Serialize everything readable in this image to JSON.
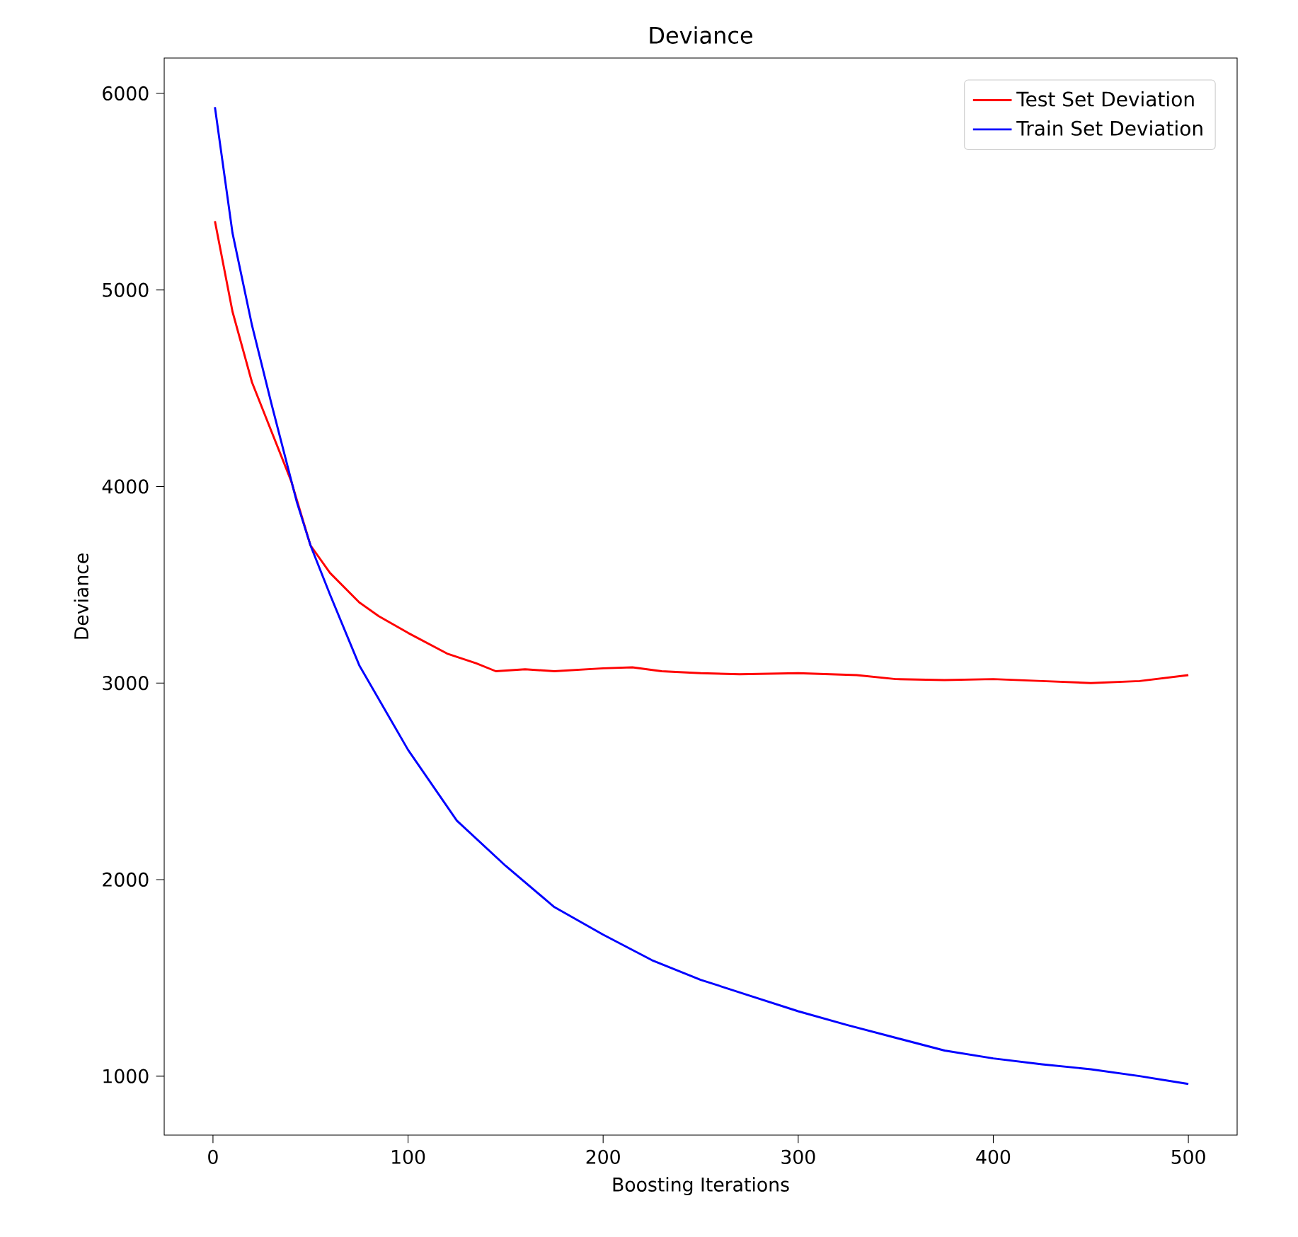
{
  "chart_data": {
    "type": "line",
    "title": "Deviance",
    "xlabel": "Boosting Iterations",
    "ylabel": "Deviance",
    "xlim": [
      -25,
      525
    ],
    "ylim": [
      700,
      6180
    ],
    "xticks": [
      0,
      100,
      200,
      300,
      400,
      500
    ],
    "yticks": [
      1000,
      2000,
      3000,
      4000,
      5000,
      6000
    ],
    "legend": "top right",
    "grid": false,
    "marker": "none",
    "line_style": "solid",
    "series": [
      {
        "name": "Test Set Deviation",
        "color": "#ff0000",
        "x": [
          1,
          10,
          20,
          30,
          40,
          50,
          60,
          75,
          85,
          100,
          120,
          135,
          145,
          160,
          175,
          200,
          215,
          230,
          250,
          270,
          300,
          330,
          350,
          375,
          400,
          425,
          450,
          475,
          500
        ],
        "values": [
          5350,
          4890,
          4530,
          4280,
          4030,
          3700,
          3560,
          3410,
          3340,
          3255,
          3150,
          3100,
          3060,
          3070,
          3060,
          3075,
          3080,
          3060,
          3050,
          3045,
          3050,
          3040,
          3020,
          3015,
          3020,
          3010,
          3000,
          3010,
          3040
        ]
      },
      {
        "name": "Train Set Deviation",
        "color": "#0000ff",
        "x": [
          1,
          10,
          20,
          30,
          43,
          50,
          60,
          75,
          100,
          125,
          150,
          175,
          200,
          225,
          250,
          275,
          300,
          325,
          350,
          375,
          400,
          425,
          450,
          475,
          500
        ],
        "values": [
          5930,
          5290,
          4820,
          4420,
          3920,
          3700,
          3450,
          3090,
          2660,
          2300,
          2070,
          1860,
          1720,
          1590,
          1490,
          1410,
          1330,
          1260,
          1195,
          1130,
          1090,
          1060,
          1035,
          1000,
          960
        ]
      }
    ]
  }
}
